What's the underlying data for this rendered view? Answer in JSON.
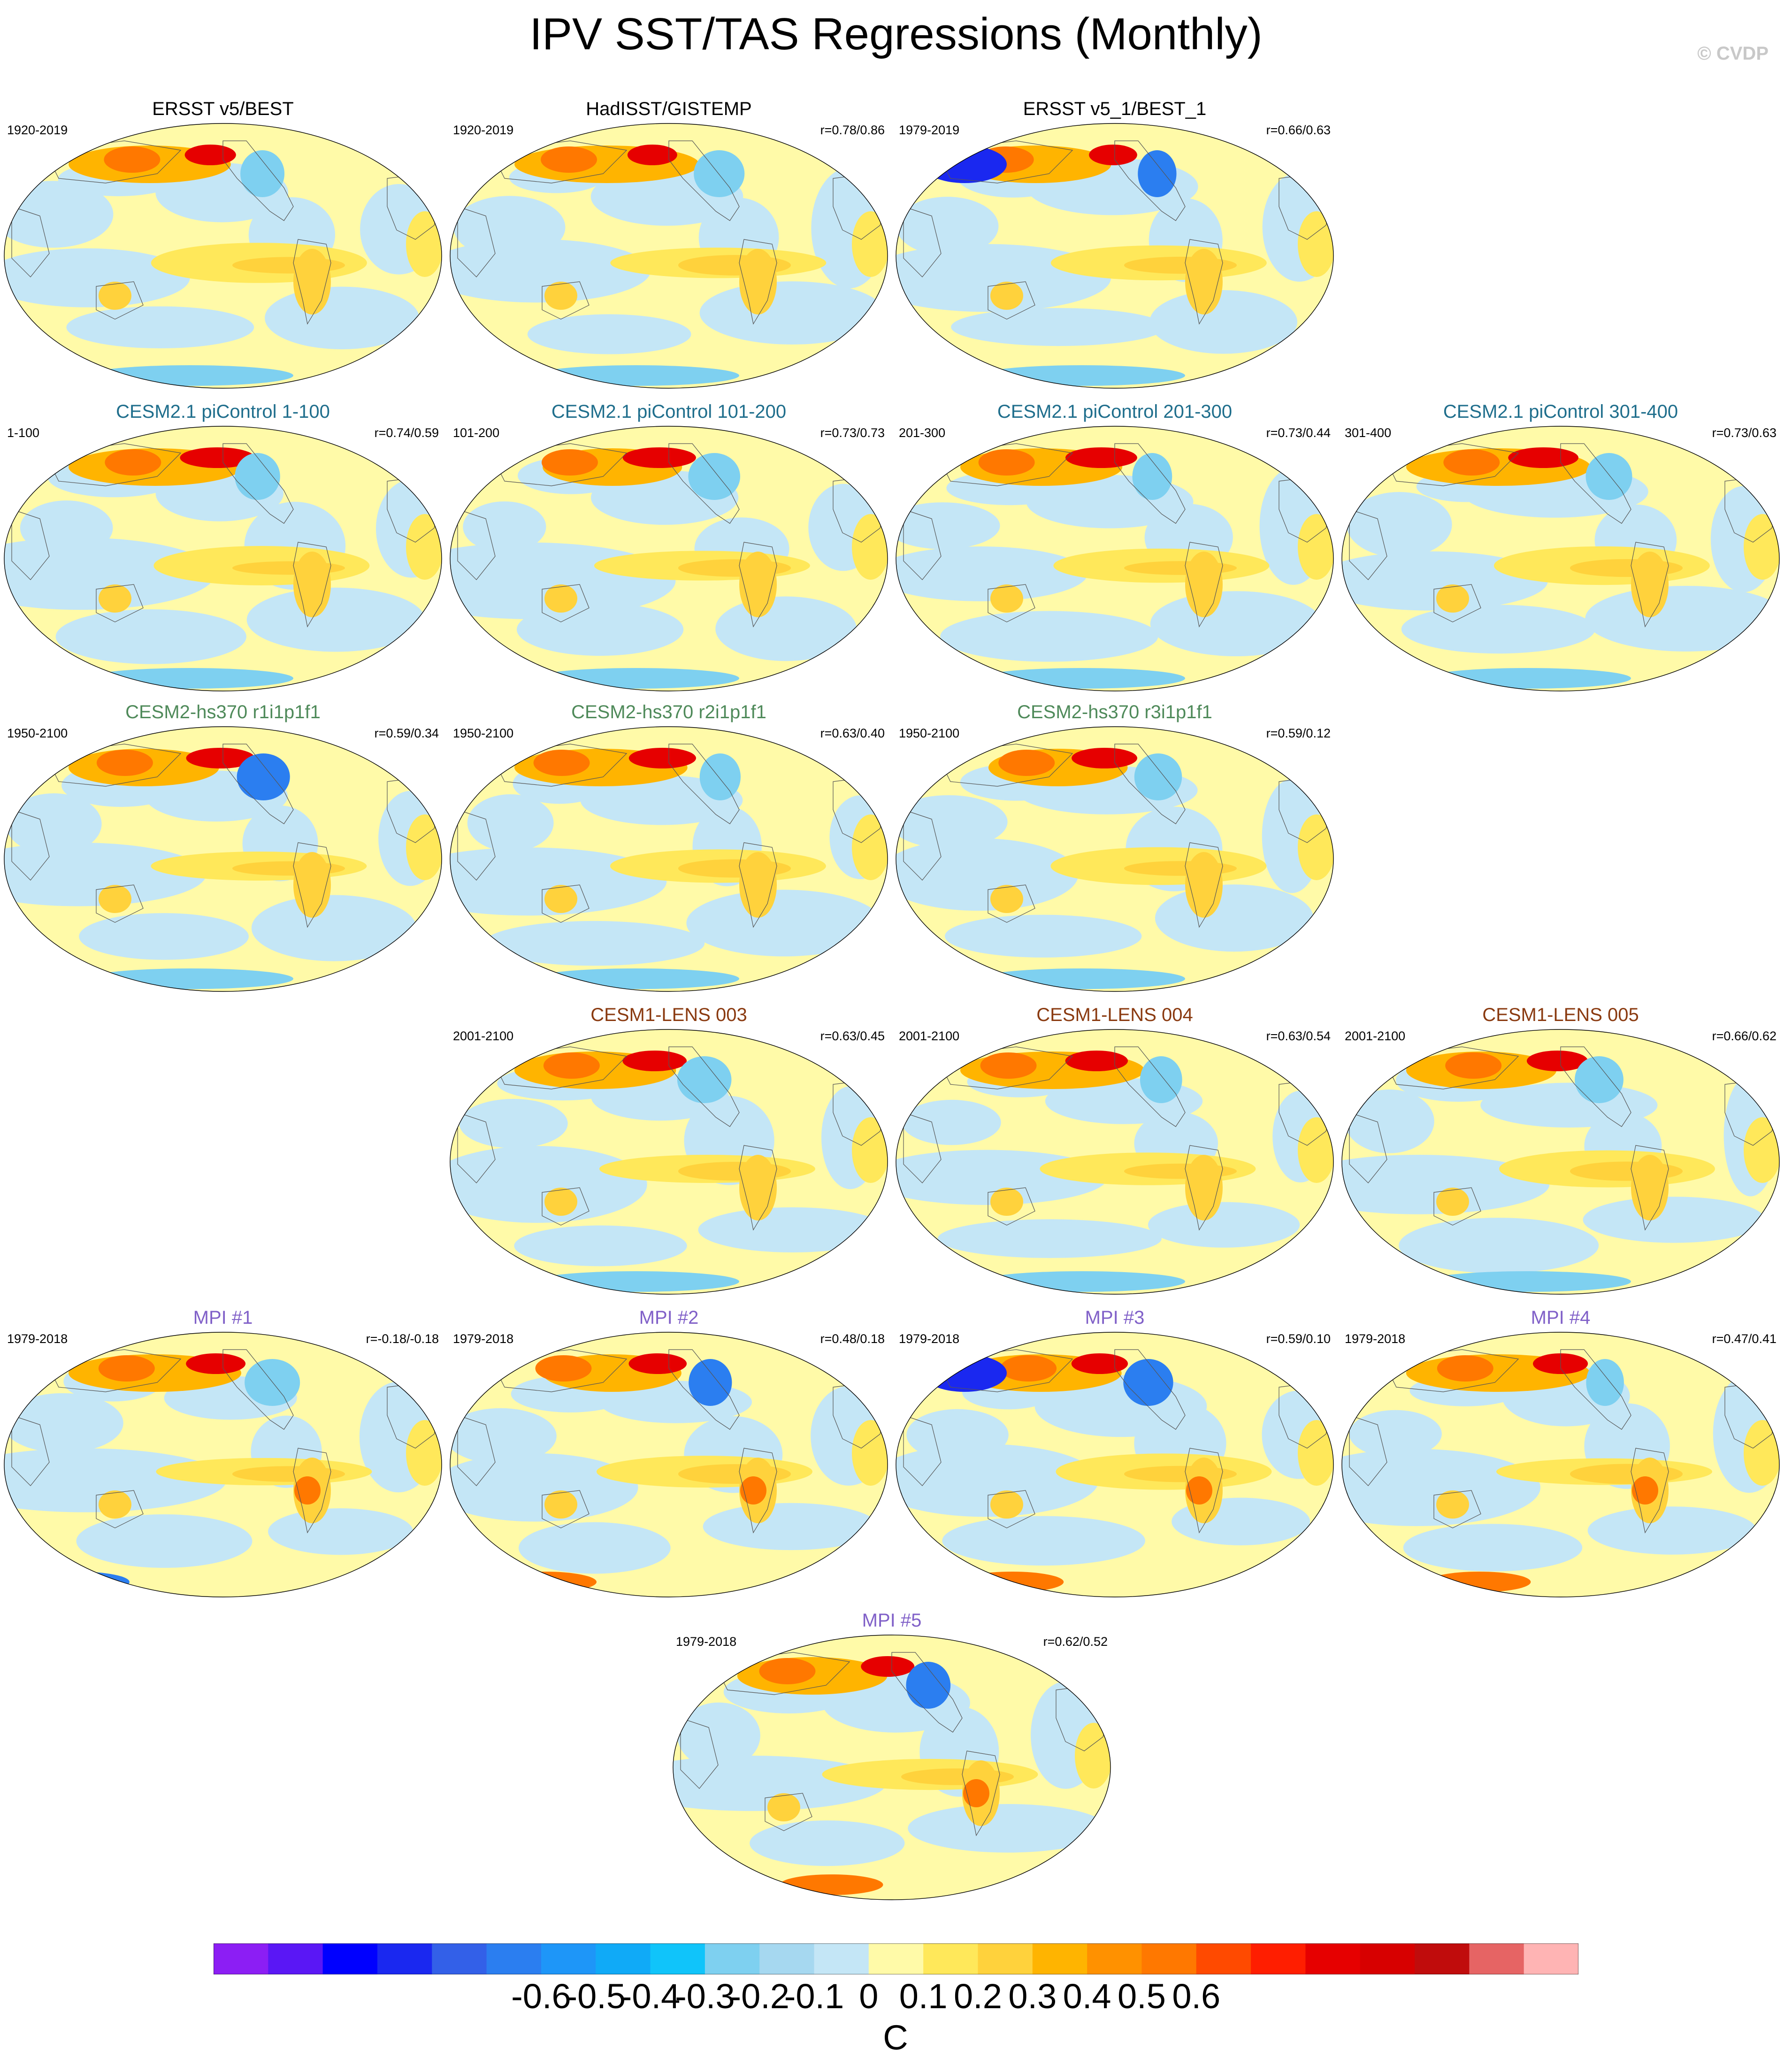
{
  "title": "IPV SST/TAS Regressions (Monthly)",
  "copyright": "© CVDP",
  "chart_data": {
    "type": "map-panels",
    "units": "C",
    "colorbar": {
      "ticks": [
        "-0.6",
        "-0.5",
        "-0.4",
        "-0.3",
        "-0.2",
        "-0.1",
        "0",
        "0.1",
        "0.2",
        "0.3",
        "0.4",
        "0.5",
        "0.6"
      ],
      "colors": [
        "#8c1ef4",
        "#5a17f5",
        "#0000ff",
        "#1a28f0",
        "#3360e8",
        "#2b7ef0",
        "#1e96f8",
        "#10aaf7",
        "#10c4fa",
        "#7ed0f0",
        "#a6d8f0",
        "#c4e6f6",
        "#fffaa8",
        "#ffe85a",
        "#ffd23c",
        "#ffb400",
        "#ff9100",
        "#ff7800",
        "#ff4a00",
        "#ff1e00",
        "#e60000",
        "#d70000",
        "#c00c0c",
        "#e66464",
        "#ffb4b4"
      ]
    },
    "panels": [
      {
        "title": "ERSST v5/BEST",
        "period": "1920-2019",
        "r": "",
        "group": "obs",
        "pattern": "obs1"
      },
      {
        "title": "HadISST/GISTEMP",
        "period": "1920-2019",
        "r": "r=0.78/0.86",
        "group": "obs",
        "pattern": "obs2"
      },
      {
        "title": "ERSST v5_1/BEST_1",
        "period": "1979-2019",
        "r": "r=0.66/0.63",
        "group": "obs",
        "pattern": "obs3"
      },
      {
        "title": "CESM2.1 piControl 1-100",
        "period": "1-100",
        "r": "r=0.74/0.59",
        "group": "cesm2",
        "pattern": "pi1"
      },
      {
        "title": "CESM2.1 piControl 101-200",
        "period": "101-200",
        "r": "r=0.73/0.73",
        "group": "cesm2",
        "pattern": "pi2"
      },
      {
        "title": "CESM2.1 piControl 201-300",
        "period": "201-300",
        "r": "r=0.73/0.44",
        "group": "cesm2",
        "pattern": "pi3"
      },
      {
        "title": "CESM2.1 piControl 301-400",
        "period": "301-400",
        "r": "r=0.73/0.63",
        "group": "cesm2",
        "pattern": "pi4"
      },
      {
        "title": "CESM2-hs370 r1i1p1f1",
        "period": "1950-2100",
        "r": "r=0.59/0.34",
        "group": "hs370",
        "pattern": "hs1"
      },
      {
        "title": "CESM2-hs370 r2i1p1f1",
        "period": "1950-2100",
        "r": "r=0.63/0.40",
        "group": "hs370",
        "pattern": "hs2"
      },
      {
        "title": "CESM2-hs370 r3i1p1f1",
        "period": "1950-2100",
        "r": "r=0.59/0.12",
        "group": "hs370",
        "pattern": "hs3"
      },
      {
        "title": "CESM1-LENS 003",
        "period": "2001-2100",
        "r": "r=0.63/0.45",
        "group": "lens",
        "pattern": "le1"
      },
      {
        "title": "CESM1-LENS 004",
        "period": "2001-2100",
        "r": "r=0.63/0.54",
        "group": "lens",
        "pattern": "le2"
      },
      {
        "title": "CESM1-LENS 005",
        "period": "2001-2100",
        "r": "r=0.66/0.62",
        "group": "lens",
        "pattern": "le3"
      },
      {
        "title": "MPI #1",
        "period": "1979-2018",
        "r": "r=-0.18/-0.18",
        "group": "mpi",
        "pattern": "mp1"
      },
      {
        "title": "MPI #2",
        "period": "1979-2018",
        "r": "r=0.48/0.18",
        "group": "mpi",
        "pattern": "mp2"
      },
      {
        "title": "MPI #3",
        "period": "1979-2018",
        "r": "r=0.59/0.10",
        "group": "mpi",
        "pattern": "mp3"
      },
      {
        "title": "MPI #4",
        "period": "1979-2018",
        "r": "r=0.47/0.41",
        "group": "mpi",
        "pattern": "mp4"
      },
      {
        "title": "MPI #5",
        "period": "1979-2018",
        "r": "r=0.62/0.52",
        "group": "mpi",
        "pattern": "mp5"
      }
    ]
  },
  "group_colors": {
    "obs": "#000000",
    "cesm2": "#1f6e8c",
    "hs370": "#4f8a5a",
    "lens": "#8a3a10",
    "mpi": "#8060c8"
  },
  "map_colors": {
    "background": "#fffaa8",
    "ocean_cool": "#c4e6f6",
    "warm1": "#ffe85a",
    "warm2": "#ffd23c",
    "warm3": "#ffb400",
    "warm4": "#ff7800",
    "hot": "#e60000",
    "cool2": "#7ed0f0",
    "cool3": "#2b7ef0",
    "deep": "#1a28f0",
    "land_outline": "#555555"
  }
}
